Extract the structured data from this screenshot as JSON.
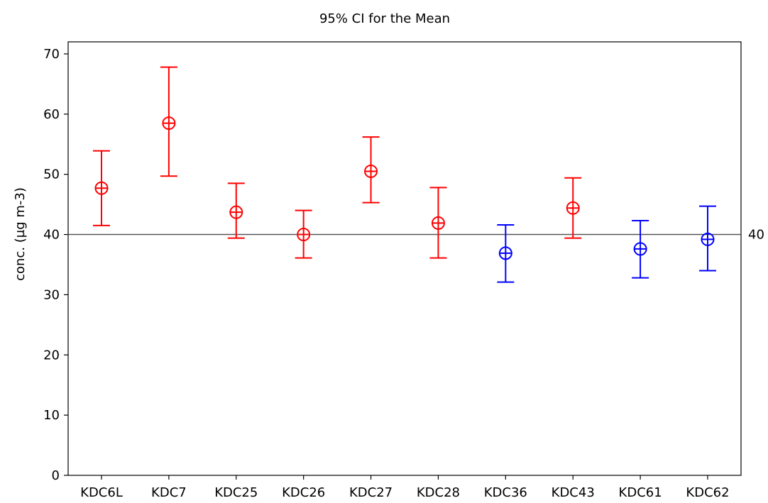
{
  "chart_data": {
    "type": "scatter",
    "title": "95% CI for the Mean",
    "xlabel": "",
    "ylabel": "conc. (µg m-3)",
    "ylim": [
      0,
      72
    ],
    "yticks": [
      0,
      10,
      20,
      30,
      40,
      50,
      60,
      70
    ],
    "ytick_labels": [
      "0",
      "10",
      "20",
      "30",
      "40",
      "50",
      "60",
      "70"
    ],
    "reference_line": {
      "value": 40,
      "label": "40"
    },
    "categories": [
      "KDC6L",
      "KDC7",
      "KDC25",
      "KDC26",
      "KDC27",
      "KDC28",
      "KDC36",
      "KDC43",
      "KDC61",
      "KDC62"
    ],
    "series": [
      {
        "mean": [
          47.7,
          58.5,
          43.7,
          40.0,
          50.5,
          41.9,
          36.9,
          44.4,
          37.6,
          39.2
        ],
        "lower": [
          41.5,
          49.7,
          39.4,
          36.1,
          45.3,
          36.1,
          32.1,
          39.4,
          32.8,
          34.0
        ],
        "upper": [
          53.9,
          67.8,
          48.5,
          44.0,
          56.2,
          47.8,
          41.6,
          49.4,
          42.3,
          44.7
        ],
        "colors": [
          "#ff0000",
          "#ff0000",
          "#ff0000",
          "#ff0000",
          "#ff0000",
          "#ff0000",
          "#0000ff",
          "#ff0000",
          "#0000ff",
          "#0000ff"
        ]
      }
    ],
    "grid": false,
    "legend": "none"
  }
}
